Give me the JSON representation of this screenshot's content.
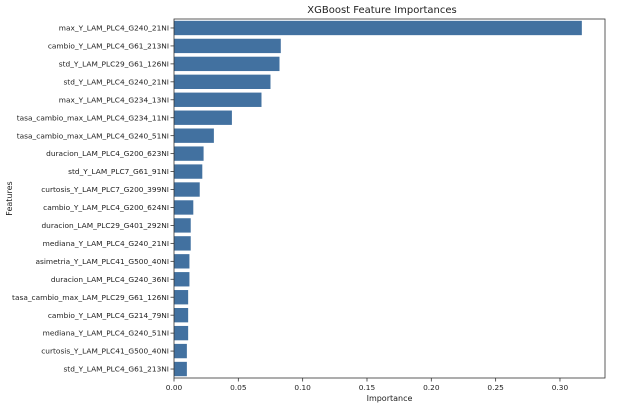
{
  "chart_data": {
    "type": "bar",
    "orientation": "horizontal",
    "title": "XGBoost Feature Importances",
    "xlabel": "Importance",
    "ylabel": "Features",
    "xlim": [
      0,
      0.335
    ],
    "xticks": [
      0.0,
      0.05,
      0.1,
      0.15,
      0.2,
      0.25,
      0.3
    ],
    "xtick_labels": [
      "0.00",
      "0.05",
      "0.10",
      "0.15",
      "0.20",
      "0.25",
      "0.30"
    ],
    "grid": false,
    "bar_color": "#4271a0",
    "categories": [
      "max_Y_LAM_PLC4_G240_21NI",
      "cambio_Y_LAM_PLC4_G61_213NI",
      "std_Y_LAM_PLC29_G61_126NI",
      "std_Y_LAM_PLC4_G240_21NI",
      "max_Y_LAM_PLC4_G234_13NI",
      "tasa_cambio_max_LAM_PLC4_G234_11NI",
      "tasa_cambio_max_LAM_PLC4_G240_51NI",
      "duracion_LAM_PLC4_G200_623NI",
      "std_Y_LAM_PLC7_G61_91NI",
      "curtosis_Y_LAM_PLC7_G200_399NI",
      "cambio_Y_LAM_PLC4_G200_624NI",
      "duracion_LAM_PLC29_G401_292NI",
      "mediana_Y_LAM_PLC4_G240_21NI",
      "asimetria_Y_LAM_PLC41_G500_40NI",
      "duracion_LAM_PLC4_G240_36NI",
      "tasa_cambio_max_LAM_PLC29_G61_126NI",
      "cambio_Y_LAM_PLC4_G214_79NI",
      "mediana_Y_LAM_PLC4_G240_51NI",
      "curtosis_Y_LAM_PLC41_G500_40NI",
      "std_Y_LAM_PLC4_G61_213NI"
    ],
    "values": [
      0.317,
      0.083,
      0.082,
      0.075,
      0.068,
      0.045,
      0.031,
      0.023,
      0.022,
      0.02,
      0.015,
      0.013,
      0.013,
      0.012,
      0.012,
      0.011,
      0.011,
      0.011,
      0.01,
      0.01
    ]
  }
}
